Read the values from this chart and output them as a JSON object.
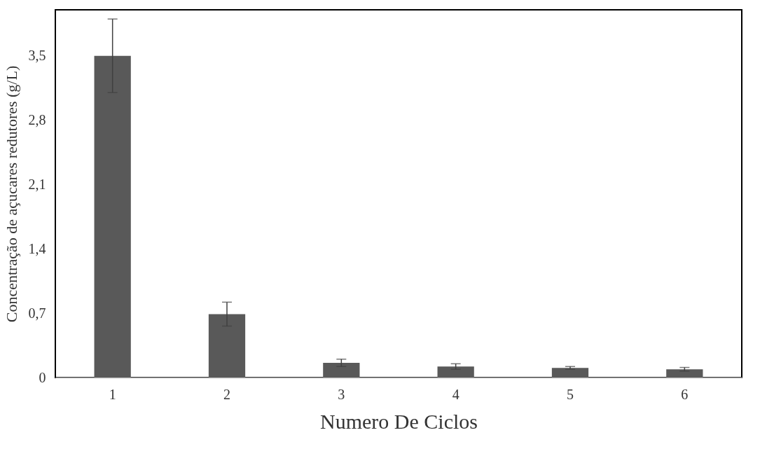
{
  "chart_data": {
    "type": "bar",
    "xlabel": "Numero De Ciclos",
    "ylabel": "Concentração de açucares redutores (g/L)",
    "categories": [
      "1",
      "2",
      "3",
      "4",
      "5",
      "6"
    ],
    "values": [
      3.5,
      0.69,
      0.16,
      0.12,
      0.105,
      0.09
    ],
    "errors": [
      0.4,
      0.13,
      0.04,
      0.03,
      0.015,
      0.02
    ],
    "color": "#595959",
    "ylim": [
      0,
      4.0
    ],
    "yticks": [
      0,
      {
        "value": 0.7,
        "label": "0,7"
      },
      {
        "value": 1.4,
        "label": "1,4"
      },
      {
        "value": 2.1,
        "label": "2,1"
      },
      {
        "value": 2.8,
        "label": "2,8"
      },
      {
        "value": 3.5,
        "label": "3,5"
      }
    ],
    "grid": false
  }
}
